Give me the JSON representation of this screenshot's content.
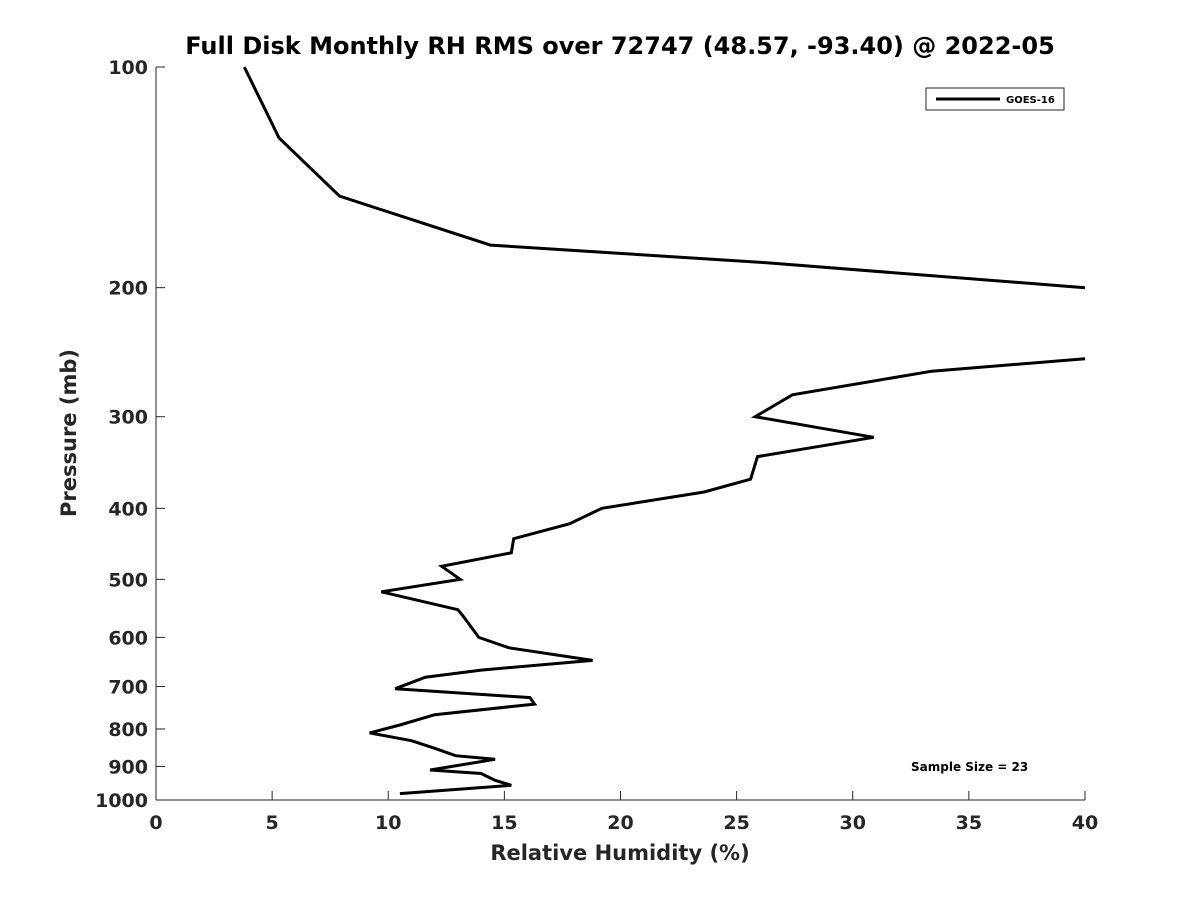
{
  "chart_data": {
    "type": "line",
    "title": "Full Disk Monthly RH RMS over 72747 (48.57, -93.40) @ 2022-05",
    "xlabel": "Relative Humidity (%)",
    "ylabel": "Pressure (mb)",
    "xlim": [
      0,
      40
    ],
    "ylim": [
      100,
      1000
    ],
    "y_scale": "log",
    "y_inverted": true,
    "grid": false,
    "legend_position": "top-right",
    "x_ticks": [
      "0",
      "5",
      "10",
      "15",
      "20",
      "25",
      "30",
      "35",
      "40"
    ],
    "y_ticks": [
      "100",
      "200",
      "300",
      "400",
      "500",
      "600",
      "700",
      "800",
      "900",
      "1000"
    ],
    "annotation": "Sample Size = 23",
    "colors": {
      "series": "#000000",
      "axes": "#262626"
    },
    "series": [
      {
        "name": "GOES-16",
        "segments": [
          [
            [
              3.8,
              100
            ],
            [
              5.3,
              125
            ],
            [
              7.9,
              150
            ],
            [
              14.4,
              175
            ],
            [
              26.3,
              185
            ],
            [
              40.0,
              200
            ]
          ],
          [
            [
              40.0,
              250
            ],
            [
              33.4,
              260
            ],
            [
              27.4,
              280
            ],
            [
              25.8,
              300
            ],
            [
              30.9,
              320
            ],
            [
              25.9,
              340
            ],
            [
              25.6,
              365
            ],
            [
              23.6,
              380
            ],
            [
              19.2,
              400
            ],
            [
              17.8,
              420
            ],
            [
              15.4,
              440
            ],
            [
              15.3,
              460
            ],
            [
              12.3,
              480
            ],
            [
              13.1,
              500
            ],
            [
              9.7,
              520
            ],
            [
              13.0,
              550
            ],
            [
              13.2,
              560
            ],
            [
              13.9,
              600
            ],
            [
              15.2,
              620
            ],
            [
              18.8,
              645
            ],
            [
              14.0,
              665
            ],
            [
              11.6,
              680
            ],
            [
              10.3,
              705
            ],
            [
              16.1,
              725
            ],
            [
              16.3,
              740
            ],
            [
              12.0,
              765
            ],
            [
              10.5,
              790
            ],
            [
              9.2,
              810
            ],
            [
              11.0,
              830
            ],
            [
              12.0,
              850
            ],
            [
              12.9,
              870
            ],
            [
              14.6,
              880
            ],
            [
              11.8,
              910
            ],
            [
              14.0,
              920
            ],
            [
              14.6,
              940
            ],
            [
              15.3,
              955
            ],
            [
              10.5,
              980
            ]
          ]
        ]
      }
    ]
  }
}
